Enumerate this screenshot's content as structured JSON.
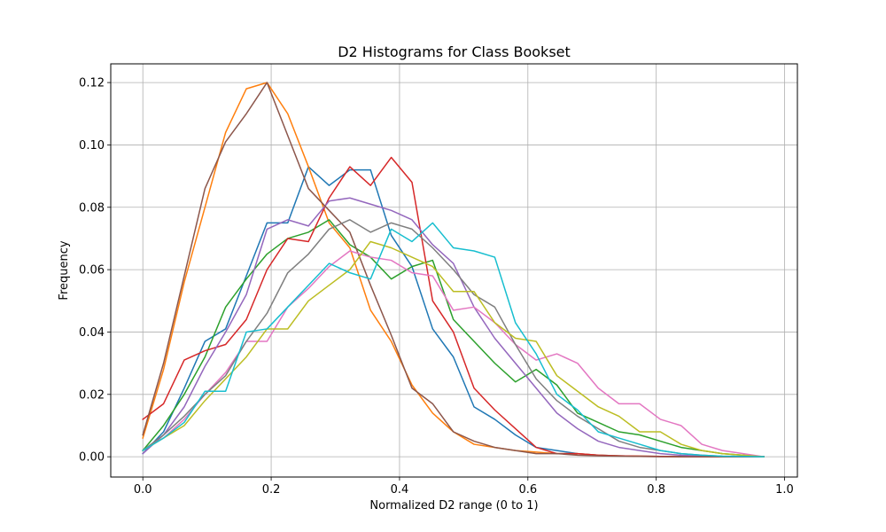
{
  "chart_data": {
    "type": "line",
    "title": "D2 Histograms for Class Bookset",
    "xlabel": "Normalized D2 range (0 to 1)",
    "ylabel": "Frequency",
    "xlim": [
      -0.05,
      1.02
    ],
    "ylim": [
      -0.0065,
      0.126
    ],
    "grid": true,
    "xticks": [
      "0.0",
      "0.2",
      "0.4",
      "0.6",
      "0.8",
      "1.0"
    ],
    "xtick_values": [
      0.0,
      0.2,
      0.4,
      0.6,
      0.8,
      1.0
    ],
    "yticks": [
      "0.00",
      "0.02",
      "0.04",
      "0.06",
      "0.08",
      "0.10",
      "0.12"
    ],
    "ytick_values": [
      0.0,
      0.02,
      0.04,
      0.06,
      0.08,
      0.1,
      0.12
    ],
    "x": [
      0.0,
      0.0323,
      0.0645,
      0.0968,
      0.129,
      0.1613,
      0.1935,
      0.2258,
      0.2581,
      0.2903,
      0.3226,
      0.3548,
      0.3871,
      0.4194,
      0.4516,
      0.4839,
      0.5161,
      0.5484,
      0.5806,
      0.6129,
      0.6452,
      0.6774,
      0.7097,
      0.7419,
      0.7742,
      0.8065,
      0.8387,
      0.871,
      0.9032,
      0.9355,
      0.9677
    ],
    "series": [
      {
        "color": "#1f77b4",
        "values": [
          0.001,
          0.008,
          0.022,
          0.037,
          0.041,
          0.058,
          0.075,
          0.075,
          0.093,
          0.087,
          0.092,
          0.092,
          0.071,
          0.061,
          0.041,
          0.032,
          0.016,
          0.012,
          0.007,
          0.003,
          0.002,
          0.001,
          0.0005,
          0.0003,
          0.0002,
          0.0001,
          0.0001,
          0.0,
          0.0,
          0.0,
          0.0
        ]
      },
      {
        "color": "#ff7f0e",
        "values": [
          0.006,
          0.028,
          0.056,
          0.08,
          0.104,
          0.118,
          0.12,
          0.11,
          0.093,
          0.075,
          0.067,
          0.047,
          0.037,
          0.023,
          0.014,
          0.008,
          0.004,
          0.003,
          0.002,
          0.0015,
          0.001,
          0.001,
          0.0005,
          0.0003,
          0.0002,
          0.0001,
          0.0,
          0.0,
          0.0,
          0.0,
          0.0
        ]
      },
      {
        "color": "#2ca02c",
        "values": [
          0.002,
          0.01,
          0.02,
          0.032,
          0.048,
          0.057,
          0.065,
          0.07,
          0.072,
          0.076,
          0.068,
          0.064,
          0.057,
          0.061,
          0.063,
          0.044,
          0.037,
          0.03,
          0.024,
          0.028,
          0.023,
          0.014,
          0.011,
          0.008,
          0.007,
          0.005,
          0.003,
          0.002,
          0.001,
          0.0005,
          0.0
        ]
      },
      {
        "color": "#d62728",
        "values": [
          0.012,
          0.017,
          0.031,
          0.034,
          0.036,
          0.044,
          0.06,
          0.07,
          0.069,
          0.083,
          0.093,
          0.087,
          0.096,
          0.088,
          0.05,
          0.04,
          0.022,
          0.015,
          0.009,
          0.003,
          0.001,
          0.001,
          0.0005,
          0.0003,
          0.0002,
          0.0001,
          0.0,
          0.0,
          0.0,
          0.0,
          0.0
        ]
      },
      {
        "color": "#9467bd",
        "values": [
          0.001,
          0.007,
          0.016,
          0.029,
          0.04,
          0.052,
          0.073,
          0.076,
          0.074,
          0.082,
          0.083,
          0.081,
          0.079,
          0.076,
          0.068,
          0.062,
          0.048,
          0.038,
          0.03,
          0.022,
          0.014,
          0.009,
          0.005,
          0.003,
          0.002,
          0.001,
          0.0005,
          0.0002,
          0.0001,
          0.0,
          0.0
        ]
      },
      {
        "color": "#8c564b",
        "values": [
          0.007,
          0.03,
          0.058,
          0.086,
          0.101,
          0.11,
          0.12,
          0.103,
          0.086,
          0.079,
          0.072,
          0.055,
          0.039,
          0.022,
          0.017,
          0.008,
          0.005,
          0.003,
          0.002,
          0.001,
          0.001,
          0.0005,
          0.0003,
          0.0002,
          0.0001,
          0.0,
          0.0,
          0.0,
          0.0,
          0.0,
          0.0
        ]
      },
      {
        "color": "#e377c2",
        "values": [
          0.002,
          0.006,
          0.012,
          0.02,
          0.027,
          0.037,
          0.037,
          0.048,
          0.054,
          0.061,
          0.066,
          0.064,
          0.063,
          0.059,
          0.058,
          0.047,
          0.048,
          0.043,
          0.036,
          0.031,
          0.033,
          0.03,
          0.022,
          0.017,
          0.017,
          0.012,
          0.01,
          0.004,
          0.002,
          0.001,
          0.0
        ]
      },
      {
        "color": "#7f7f7f",
        "values": [
          0.002,
          0.007,
          0.013,
          0.02,
          0.026,
          0.037,
          0.046,
          0.059,
          0.065,
          0.073,
          0.076,
          0.072,
          0.075,
          0.073,
          0.067,
          0.06,
          0.052,
          0.048,
          0.036,
          0.025,
          0.018,
          0.013,
          0.009,
          0.005,
          0.003,
          0.002,
          0.001,
          0.0005,
          0.0002,
          0.0001,
          0.0
        ]
      },
      {
        "color": "#bcbd22",
        "values": [
          0.002,
          0.006,
          0.01,
          0.018,
          0.025,
          0.032,
          0.041,
          0.041,
          0.05,
          0.055,
          0.06,
          0.069,
          0.067,
          0.064,
          0.061,
          0.053,
          0.053,
          0.043,
          0.038,
          0.037,
          0.026,
          0.021,
          0.016,
          0.013,
          0.008,
          0.008,
          0.004,
          0.002,
          0.001,
          0.0005,
          0.0
        ]
      },
      {
        "color": "#17becf",
        "values": [
          0.002,
          0.006,
          0.011,
          0.021,
          0.021,
          0.04,
          0.041,
          0.048,
          0.055,
          0.062,
          0.059,
          0.057,
          0.073,
          0.069,
          0.075,
          0.067,
          0.066,
          0.064,
          0.043,
          0.033,
          0.02,
          0.015,
          0.008,
          0.006,
          0.004,
          0.002,
          0.001,
          0.0005,
          0.0002,
          0.0001,
          0.0
        ]
      }
    ]
  }
}
